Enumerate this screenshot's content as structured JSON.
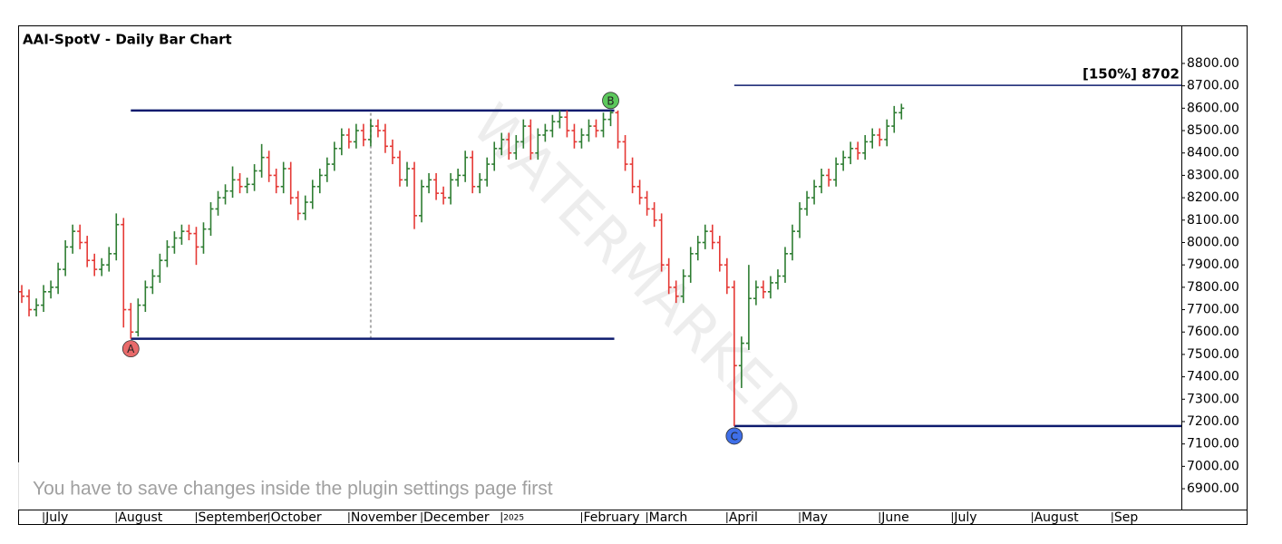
{
  "chart_data": {
    "type": "ohlc",
    "title": "AAI-SpotV - Daily Bar Chart",
    "categories": [
      null,
      null,
      null,
      "July",
      null,
      null,
      null,
      null,
      null,
      null,
      null,
      null,
      null,
      "August",
      null,
      null,
      null,
      null,
      null,
      null,
      null,
      null,
      null,
      null,
      "September",
      null,
      null,
      null,
      null,
      null,
      null,
      null,
      null,
      null,
      "October",
      null,
      null,
      null,
      null,
      null,
      null,
      null,
      null,
      null,
      null,
      "November",
      null,
      null,
      null,
      null,
      null,
      null,
      null,
      null,
      null,
      "December",
      null,
      null,
      null,
      null,
      null,
      null,
      null,
      null,
      null,
      null,
      "2025",
      null,
      null,
      null,
      null,
      null,
      null,
      null,
      null,
      null,
      null,
      "February",
      null,
      null,
      null,
      null,
      null,
      null,
      null,
      null,
      "March",
      null,
      null,
      null,
      null,
      null,
      null,
      null,
      null,
      null,
      null,
      "April",
      null,
      null,
      null,
      null,
      null,
      null,
      null,
      null,
      null,
      "May",
      null,
      null,
      null,
      null,
      null,
      null,
      null,
      null,
      null,
      null,
      "June",
      null,
      null,
      null,
      null,
      null,
      null,
      null,
      null,
      null,
      "July",
      null,
      null,
      null,
      null,
      null,
      null,
      null,
      null,
      null,
      null,
      "August",
      null,
      null,
      null,
      null,
      null,
      null,
      null,
      null,
      null,
      null,
      "Sep",
      null,
      null,
      null,
      null,
      null,
      null,
      null,
      null,
      null
    ],
    "ohlc": [
      [
        7780,
        7810,
        7730,
        7760
      ],
      [
        7760,
        7790,
        7670,
        7700
      ],
      [
        7700,
        7750,
        7670,
        7720
      ],
      [
        7720,
        7810,
        7690,
        7780
      ],
      [
        7780,
        7830,
        7750,
        7800
      ],
      [
        7800,
        7910,
        7770,
        7880
      ],
      [
        7880,
        8010,
        7850,
        7980
      ],
      [
        7980,
        8080,
        7950,
        8050
      ],
      [
        8050,
        8080,
        7970,
        8000
      ],
      [
        8000,
        8030,
        7890,
        7920
      ],
      [
        7920,
        7950,
        7850,
        7880
      ],
      [
        7880,
        7930,
        7850,
        7900
      ],
      [
        7900,
        7980,
        7870,
        7950
      ],
      [
        7950,
        8130,
        7920,
        8080
      ],
      [
        8080,
        8110,
        7620,
        7700
      ],
      [
        7700,
        7730,
        7570,
        7600
      ],
      [
        7600,
        7750,
        7580,
        7720
      ],
      [
        7720,
        7830,
        7690,
        7800
      ],
      [
        7800,
        7880,
        7770,
        7850
      ],
      [
        7850,
        7950,
        7820,
        7920
      ],
      [
        7920,
        8010,
        7890,
        7980
      ],
      [
        7980,
        8050,
        7950,
        8020
      ],
      [
        8020,
        8080,
        7990,
        8050
      ],
      [
        8050,
        8080,
        8010,
        8040
      ],
      [
        8040,
        8070,
        7900,
        7980
      ],
      [
        7980,
        8090,
        7950,
        8060
      ],
      [
        8060,
        8180,
        8030,
        8150
      ],
      [
        8150,
        8230,
        8120,
        8200
      ],
      [
        8200,
        8260,
        8170,
        8230
      ],
      [
        8230,
        8340,
        8200,
        8280
      ],
      [
        8280,
        8310,
        8220,
        8250
      ],
      [
        8250,
        8290,
        8220,
        8260
      ],
      [
        8260,
        8350,
        8230,
        8320
      ],
      [
        8320,
        8440,
        8290,
        8380
      ],
      [
        8380,
        8410,
        8270,
        8300
      ],
      [
        8300,
        8330,
        8220,
        8250
      ],
      [
        8250,
        8360,
        8220,
        8330
      ],
      [
        8330,
        8360,
        8170,
        8200
      ],
      [
        8200,
        8230,
        8100,
        8130
      ],
      [
        8130,
        8210,
        8100,
        8180
      ],
      [
        8180,
        8280,
        8150,
        8250
      ],
      [
        8250,
        8330,
        8220,
        8300
      ],
      [
        8300,
        8380,
        8270,
        8350
      ],
      [
        8350,
        8450,
        8320,
        8420
      ],
      [
        8420,
        8510,
        8390,
        8480
      ],
      [
        8480,
        8510,
        8420,
        8450
      ],
      [
        8450,
        8530,
        8420,
        8500
      ],
      [
        8500,
        8530,
        8430,
        8460
      ],
      [
        8460,
        8550,
        8430,
        8520
      ],
      [
        8520,
        8550,
        8470,
        8500
      ],
      [
        8500,
        8530,
        8400,
        8430
      ],
      [
        8430,
        8460,
        8350,
        8380
      ],
      [
        8380,
        8410,
        8250,
        8280
      ],
      [
        8280,
        8360,
        8250,
        8330
      ],
      [
        8330,
        8360,
        8060,
        8120
      ],
      [
        8120,
        8280,
        8090,
        8250
      ],
      [
        8250,
        8310,
        8220,
        8280
      ],
      [
        8280,
        8310,
        8190,
        8220
      ],
      [
        8220,
        8250,
        8170,
        8200
      ],
      [
        8200,
        8310,
        8170,
        8280
      ],
      [
        8280,
        8330,
        8250,
        8300
      ],
      [
        8300,
        8410,
        8270,
        8380
      ],
      [
        8380,
        8410,
        8220,
        8250
      ],
      [
        8250,
        8310,
        8220,
        8280
      ],
      [
        8280,
        8380,
        8250,
        8350
      ],
      [
        8350,
        8450,
        8320,
        8420
      ],
      [
        8420,
        8490,
        8390,
        8460
      ],
      [
        8460,
        8490,
        8370,
        8400
      ],
      [
        8400,
        8480,
        8370,
        8450
      ],
      [
        8450,
        8550,
        8420,
        8520
      ],
      [
        8520,
        8550,
        8370,
        8400
      ],
      [
        8400,
        8510,
        8370,
        8480
      ],
      [
        8480,
        8530,
        8450,
        8500
      ],
      [
        8500,
        8570,
        8470,
        8540
      ],
      [
        8540,
        8590,
        8510,
        8560
      ],
      [
        8560,
        8590,
        8470,
        8500
      ],
      [
        8500,
        8530,
        8420,
        8450
      ],
      [
        8450,
        8510,
        8420,
        8480
      ],
      [
        8480,
        8550,
        8450,
        8520
      ],
      [
        8520,
        8550,
        8470,
        8500
      ],
      [
        8500,
        8580,
        8470,
        8550
      ],
      [
        8550,
        8590,
        8520,
        8580
      ],
      [
        8580,
        8590,
        8420,
        8450
      ],
      [
        8450,
        8480,
        8320,
        8350
      ],
      [
        8350,
        8380,
        8220,
        8250
      ],
      [
        8250,
        8280,
        8170,
        8200
      ],
      [
        8200,
        8230,
        8120,
        8150
      ],
      [
        8150,
        8180,
        8070,
        8100
      ],
      [
        8100,
        8130,
        7870,
        7900
      ],
      [
        7900,
        7930,
        7770,
        7800
      ],
      [
        7800,
        7830,
        7730,
        7760
      ],
      [
        7760,
        7880,
        7730,
        7850
      ],
      [
        7850,
        7980,
        7820,
        7950
      ],
      [
        7950,
        8030,
        7920,
        8000
      ],
      [
        8000,
        8080,
        7970,
        8050
      ],
      [
        8050,
        8080,
        7970,
        8000
      ],
      [
        8000,
        8030,
        7870,
        7900
      ],
      [
        7900,
        7930,
        7770,
        7800
      ],
      [
        7800,
        7830,
        7180,
        7450
      ],
      [
        7450,
        7580,
        7350,
        7550
      ],
      [
        7550,
        7900,
        7520,
        7750
      ],
      [
        7750,
        7830,
        7720,
        7800
      ],
      [
        7800,
        7830,
        7750,
        7780
      ],
      [
        7780,
        7850,
        7750,
        7820
      ],
      [
        7820,
        7880,
        7790,
        7850
      ],
      [
        7850,
        7980,
        7820,
        7950
      ],
      [
        7950,
        8080,
        7920,
        8050
      ],
      [
        8050,
        8180,
        8020,
        8150
      ],
      [
        8150,
        8230,
        8120,
        8200
      ],
      [
        8200,
        8280,
        8170,
        8250
      ],
      [
        8250,
        8330,
        8220,
        8300
      ],
      [
        8300,
        8330,
        8250,
        8280
      ],
      [
        8280,
        8380,
        8250,
        8350
      ],
      [
        8350,
        8410,
        8320,
        8380
      ],
      [
        8380,
        8450,
        8350,
        8420
      ],
      [
        8420,
        8450,
        8370,
        8400
      ],
      [
        8400,
        8480,
        8370,
        8450
      ],
      [
        8450,
        8510,
        8420,
        8480
      ],
      [
        8480,
        8510,
        8430,
        8460
      ],
      [
        8460,
        8550,
        8430,
        8520
      ],
      [
        8520,
        8610,
        8490,
        8580
      ],
      [
        8580,
        8620,
        8550,
        8600
      ],
      null,
      null,
      null,
      null,
      null,
      null,
      null,
      null,
      null,
      null,
      null,
      null,
      null,
      null,
      null,
      null,
      null,
      null,
      null,
      null,
      null,
      null,
      null,
      null,
      null,
      null,
      null,
      null,
      null,
      null,
      null,
      null,
      null,
      null,
      null,
      null,
      null,
      null
    ],
    "up_color": "#2e7d32",
    "down_color": "#e53935",
    "ylim": [
      6807,
      8970
    ],
    "yticks": [
      {
        "value": 6900,
        "label": "6900.00"
      },
      {
        "value": 7000,
        "label": "7000.00"
      },
      {
        "value": 7100,
        "label": "7100.00"
      },
      {
        "value": 7200,
        "label": "7200.00"
      },
      {
        "value": 7300,
        "label": "7300.00"
      },
      {
        "value": 7400,
        "label": "7400.00"
      },
      {
        "value": 7500,
        "label": "7500.00"
      },
      {
        "value": 7600,
        "label": "7600.00"
      },
      {
        "value": 7700,
        "label": "7700.00"
      },
      {
        "value": 7800,
        "label": "7800.00"
      },
      {
        "value": 7900,
        "label": "7900.00"
      },
      {
        "value": 8000,
        "label": "8000.00"
      },
      {
        "value": 8100,
        "label": "8100.00"
      },
      {
        "value": 8200,
        "label": "8200.00"
      },
      {
        "value": 8300,
        "label": "8300.00"
      },
      {
        "value": 8400,
        "label": "8400.00"
      },
      {
        "value": 8500,
        "label": "8500.00"
      },
      {
        "value": 8600,
        "label": "8600.00"
      },
      {
        "value": 8700,
        "label": "8700.00"
      },
      {
        "value": 8800,
        "label": "8800.00"
      }
    ],
    "levels": [
      {
        "value": 8590,
        "from": 15,
        "to": 81,
        "color": "#0d1b6e"
      },
      {
        "value": 7570,
        "from": 15,
        "to": 81,
        "color": "#0d1b6e"
      },
      {
        "value": 7180,
        "from": 98,
        "to": 159,
        "color": "#0d1b6e"
      },
      {
        "value": 8702,
        "label": "[150%] 8702",
        "from": 98,
        "to": 159,
        "color": "#0d1b6e"
      }
    ],
    "points": [
      {
        "label": "A",
        "index": 15,
        "value": 7570,
        "color": "#e86a6a"
      },
      {
        "label": "B",
        "index": 81,
        "value": 8590,
        "color": "#5cc85c"
      },
      {
        "label": "C",
        "index": 98,
        "value": 7180,
        "color": "#3f6fe8"
      }
    ],
    "vertical_marker": {
      "index": 48,
      "from": 7570,
      "to": 8590
    },
    "watermark": "WATERMARKED",
    "notice": "You have to save changes inside the plugin settings page first"
  }
}
